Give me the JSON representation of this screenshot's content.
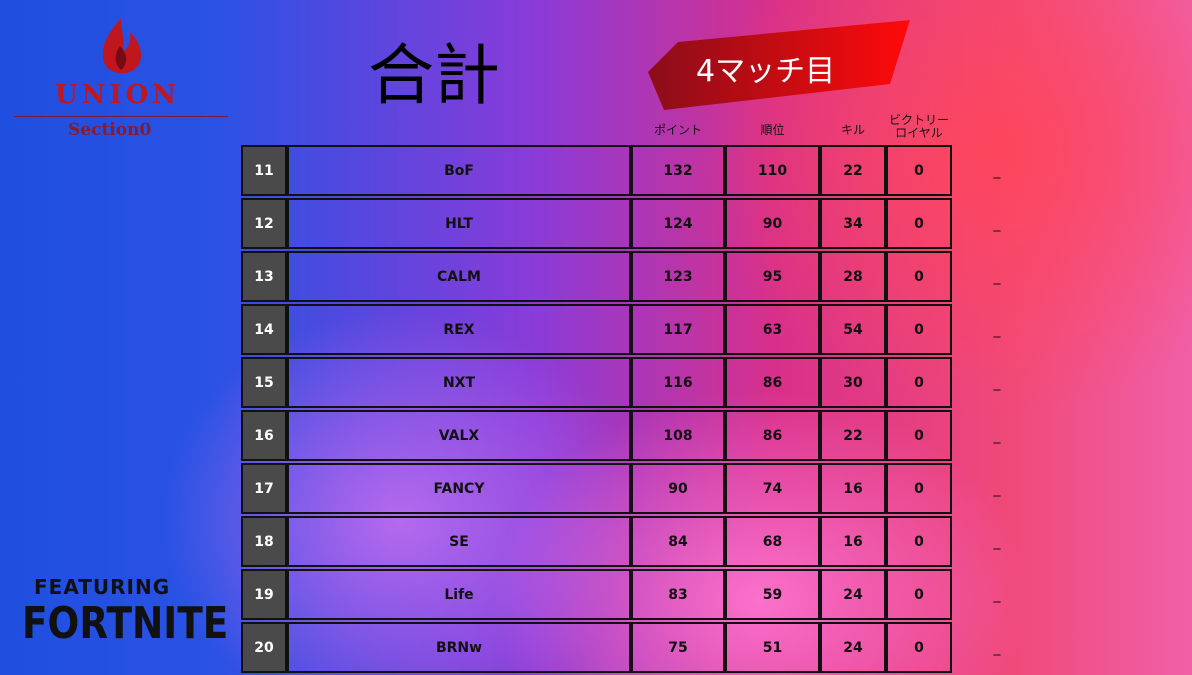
{
  "logo": {
    "name": "UNION",
    "sub": "Section0"
  },
  "title": "合計",
  "badge": "4マッチ目",
  "headers": {
    "points": "ポイント",
    "placement": "順位",
    "kills": "キル",
    "victory": [
      "ビクトリー",
      "ロイヤル"
    ]
  },
  "table": {
    "rows": [
      [
        "11",
        "BoF",
        "132",
        "110",
        "22",
        "0",
        "_"
      ],
      [
        "12",
        "HLT",
        "124",
        "90",
        "34",
        "0",
        "_"
      ],
      [
        "13",
        "CALM",
        "123",
        "95",
        "28",
        "0",
        "_"
      ],
      [
        "14",
        "REX",
        "117",
        "63",
        "54",
        "0",
        "_"
      ],
      [
        "15",
        "NXT",
        "116",
        "86",
        "30",
        "0",
        "_"
      ],
      [
        "16",
        "VALX",
        "108",
        "86",
        "22",
        "0",
        "_"
      ],
      [
        "17",
        "FANCY",
        "90",
        "74",
        "16",
        "0",
        "_"
      ],
      [
        "18",
        "SE",
        "84",
        "68",
        "16",
        "0",
        "_"
      ],
      [
        "19",
        "Life",
        "83",
        "59",
        "24",
        "0",
        "_"
      ],
      [
        "20",
        "BRNw",
        "75",
        "51",
        "24",
        "0",
        "_"
      ]
    ]
  },
  "footer": {
    "featuring": "FEATURING",
    "game": "FORTNITE"
  }
}
